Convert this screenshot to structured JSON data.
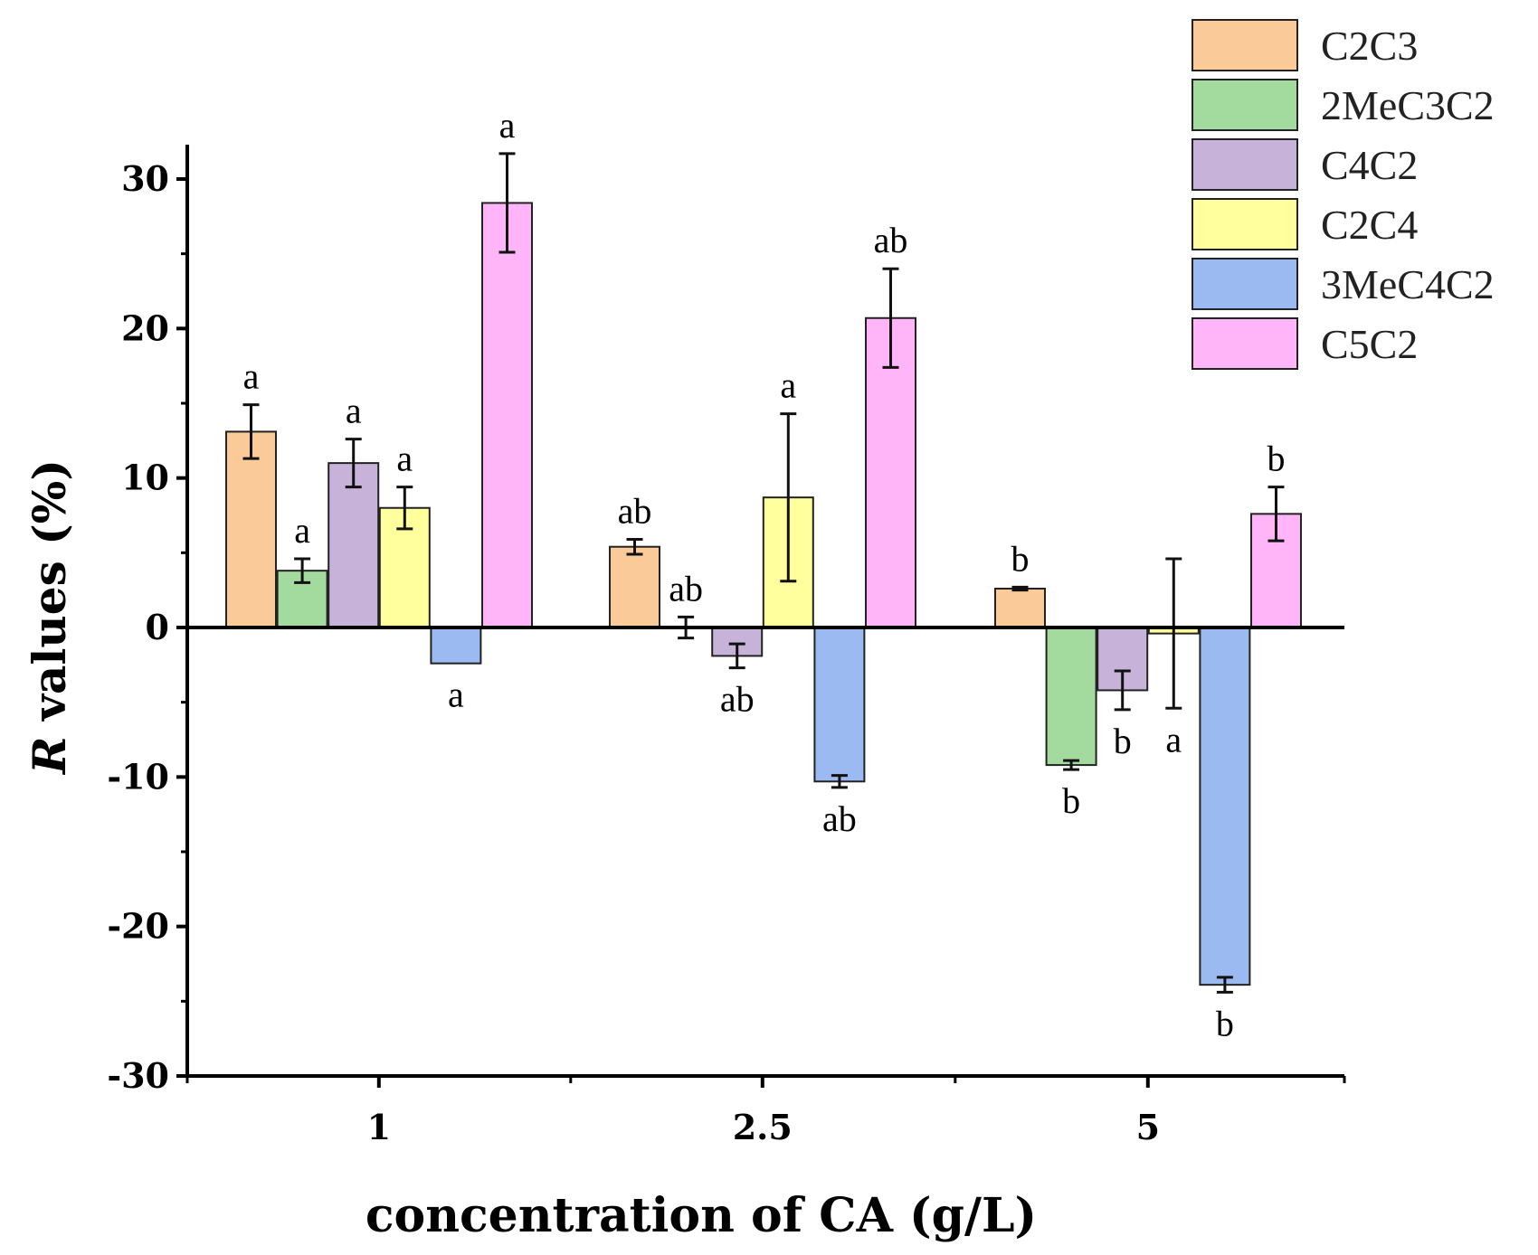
{
  "chart_data": {
    "type": "bar",
    "xlabel": "concentration of CA (g/L)",
    "ylabel_italic": "R",
    "ylabel_rest": " values (%)",
    "categories": [
      "1",
      "2.5",
      "5"
    ],
    "ylim": [
      -30,
      32
    ],
    "yticks": [
      30,
      20,
      10,
      0,
      -10,
      -20,
      -30
    ],
    "ytick_labels": [
      "30",
      "20",
      "10",
      "0",
      "-10",
      "-20",
      "-30"
    ],
    "legend_position": "top-right",
    "series": [
      {
        "name": "C2C3",
        "color": "#FACB98",
        "values": [
          13.1,
          5.4,
          2.6
        ],
        "errors": [
          1.8,
          0.5,
          0.1
        ],
        "labels": [
          "a",
          "ab",
          "b"
        ]
      },
      {
        "name": "2MeC3C2",
        "color": "#A3DB9F",
        "values": [
          3.8,
          0.0,
          -9.2
        ],
        "errors": [
          0.8,
          0.7,
          0.3
        ],
        "labels": [
          "a",
          "ab",
          "b"
        ]
      },
      {
        "name": "C4C2",
        "color": "#C7B3D9",
        "values": [
          11.0,
          -1.9,
          -4.2
        ],
        "errors": [
          1.6,
          0.8,
          1.3
        ],
        "labels": [
          "a",
          "ab",
          "b"
        ]
      },
      {
        "name": "C2C4",
        "color": "#FFFF9E",
        "values": [
          8.0,
          8.7,
          -0.4
        ],
        "errors": [
          1.4,
          5.6,
          5.0
        ],
        "labels": [
          "a",
          "a",
          "a"
        ]
      },
      {
        "name": "3MeC4C2",
        "color": "#9CBAF2",
        "values": [
          -2.4,
          -10.3,
          -23.9
        ],
        "errors": [
          0.0,
          0.4,
          0.5
        ],
        "labels": [
          "a",
          "ab",
          "b"
        ]
      },
      {
        "name": "C5C2",
        "color": "#FFB5F7",
        "values": [
          28.4,
          20.7,
          7.6
        ],
        "errors": [
          3.3,
          3.3,
          1.8
        ],
        "labels": [
          "a",
          "ab",
          "b"
        ]
      }
    ]
  }
}
